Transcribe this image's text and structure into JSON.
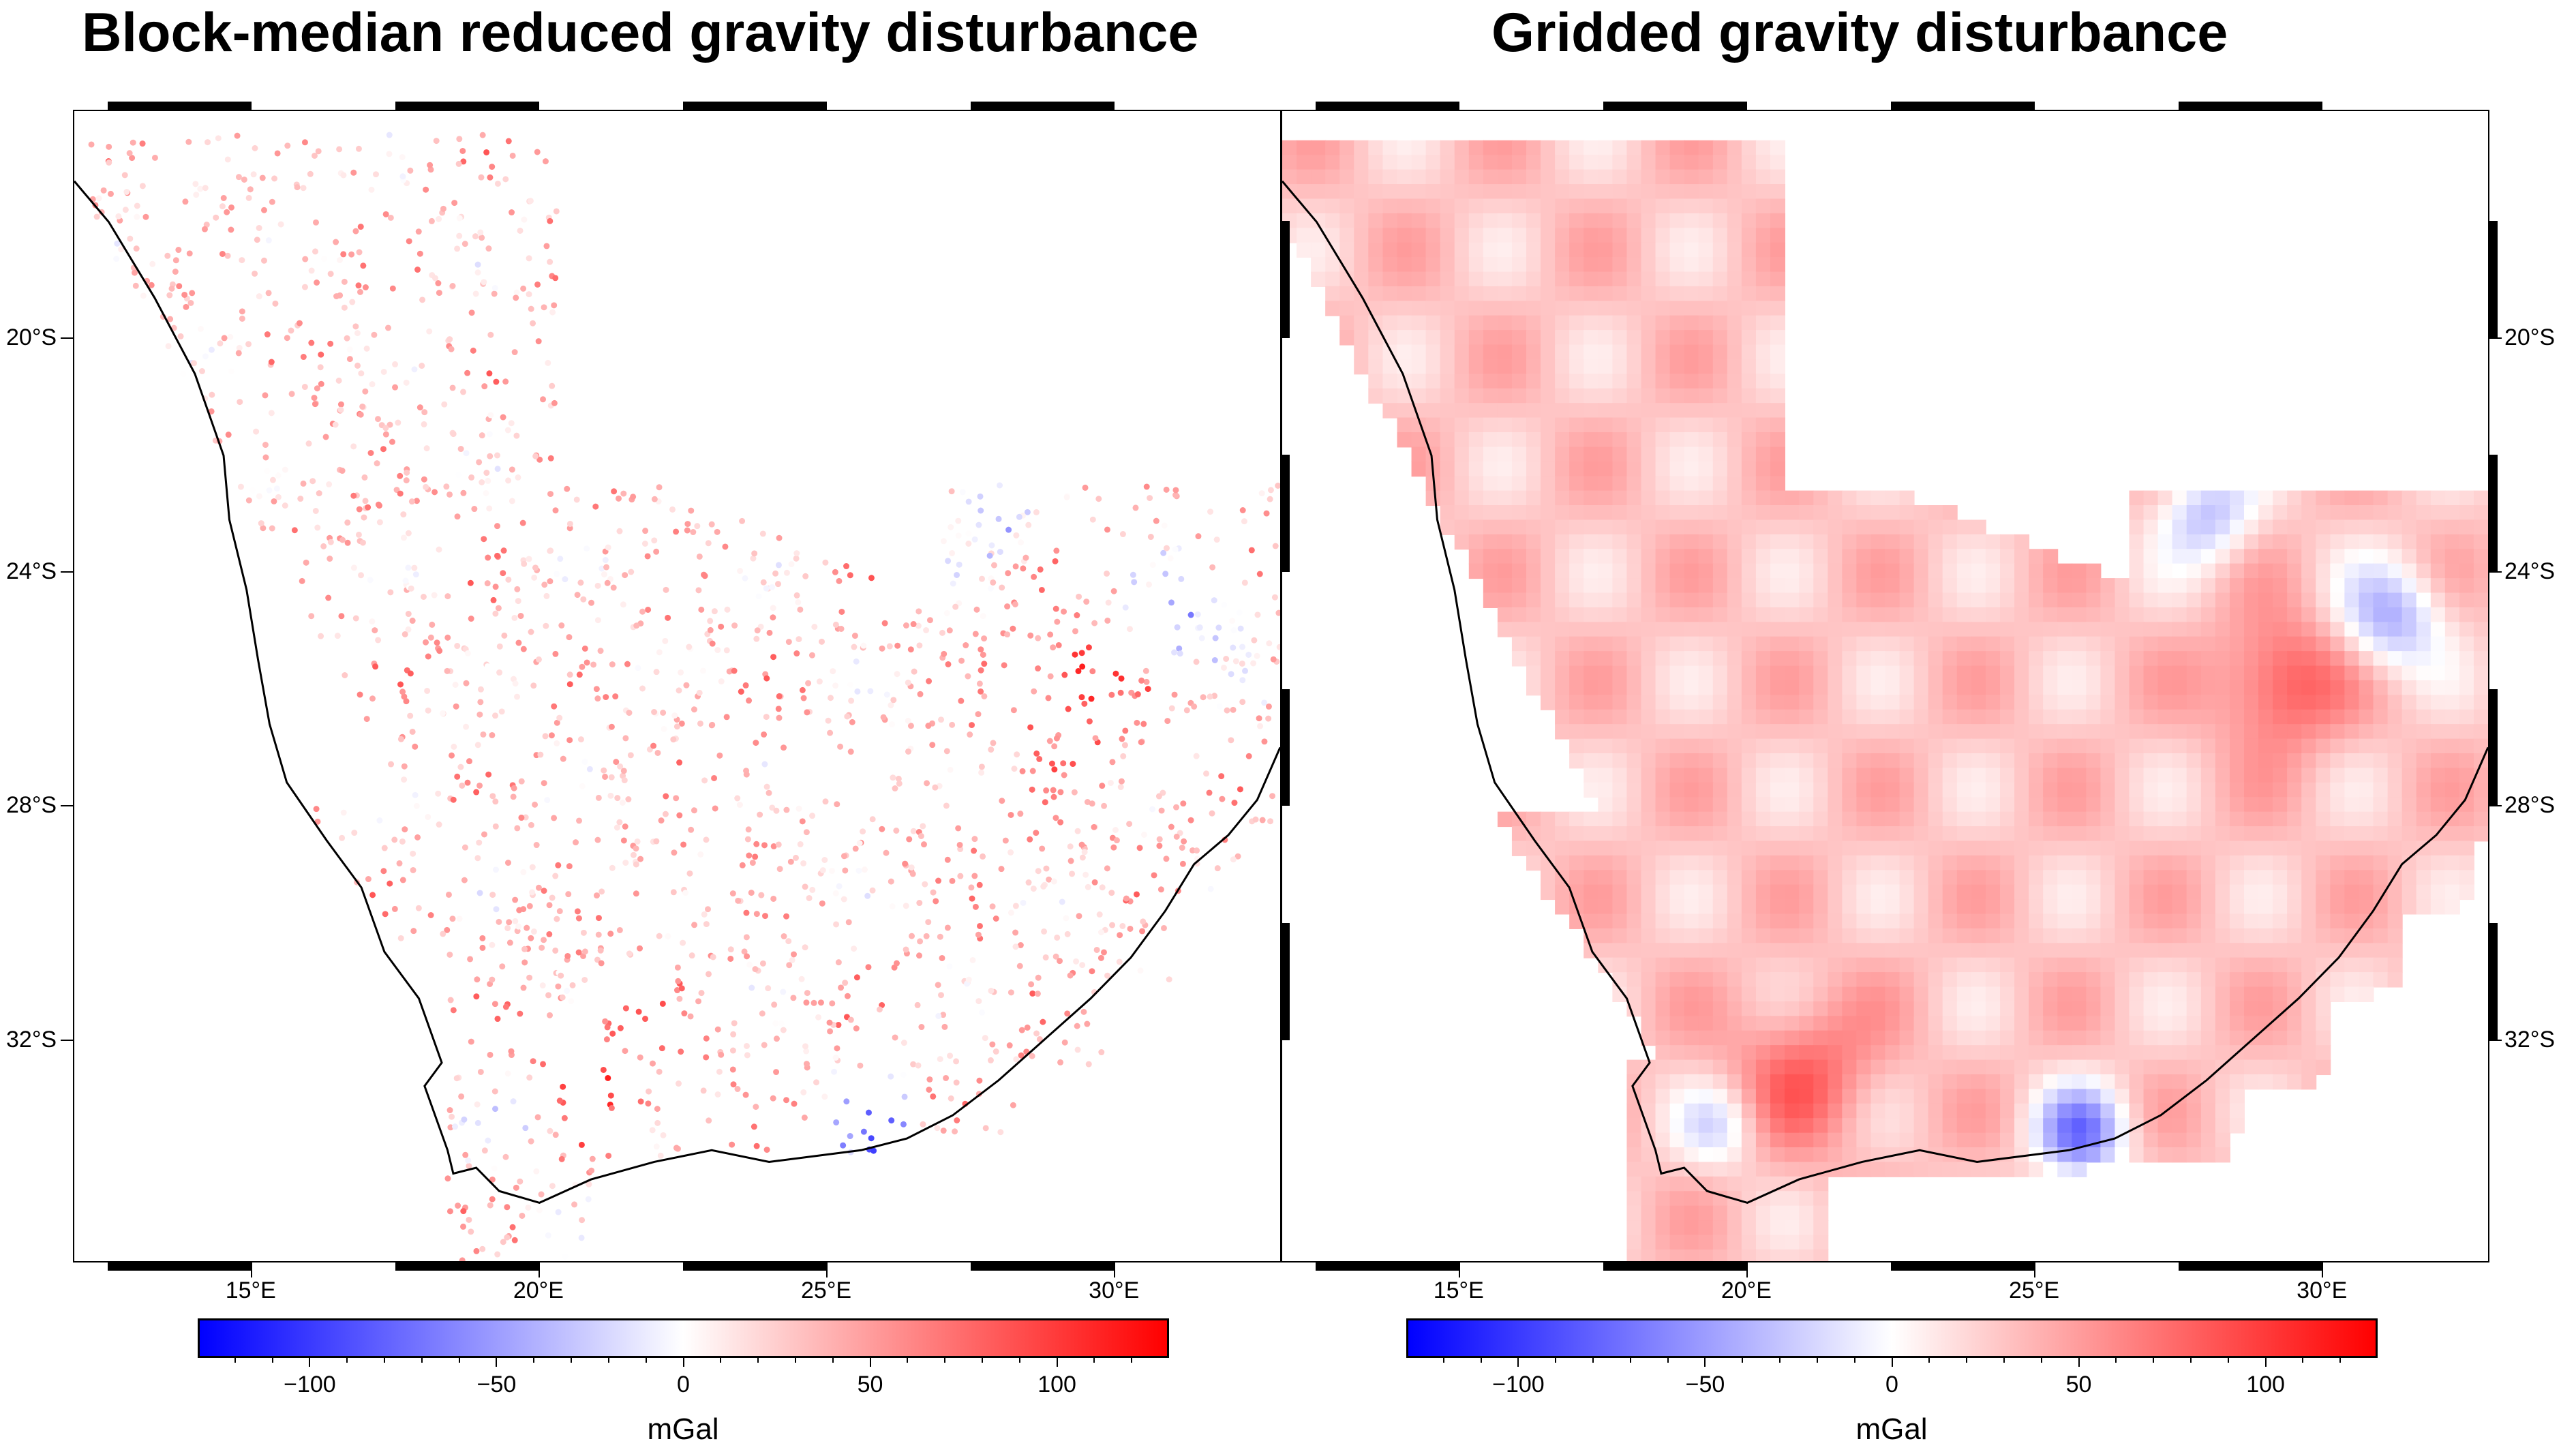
{
  "panels": [
    {
      "id": "blockmedian",
      "title": "Block-median reduced gravity disturbance"
    },
    {
      "id": "gridded",
      "title": "Gridded gravity disturbance"
    }
  ],
  "map": {
    "region": {
      "lon_min": 11.9,
      "lon_max": 32.9,
      "lat_min": -35.8,
      "lat_max": -16.1
    },
    "xticks": [
      15,
      20,
      25,
      30
    ],
    "xtick_labels": [
      "15°E",
      "20°E",
      "25°E",
      "30°E"
    ],
    "yticks": [
      -20,
      -24,
      -28,
      -32
    ],
    "ytick_labels": [
      "20°S",
      "24°S",
      "28°S",
      "32°S"
    ]
  },
  "colorbar": {
    "cmap": [
      "#0000ff",
      "#ffffff",
      "#ff0000"
    ],
    "range": [
      -130,
      130
    ],
    "ticks": [
      -100,
      -50,
      0,
      50,
      100
    ],
    "tick_labels": [
      "−100",
      "−50",
      "0",
      "50",
      "100"
    ],
    "unit": "mGal"
  }
}
